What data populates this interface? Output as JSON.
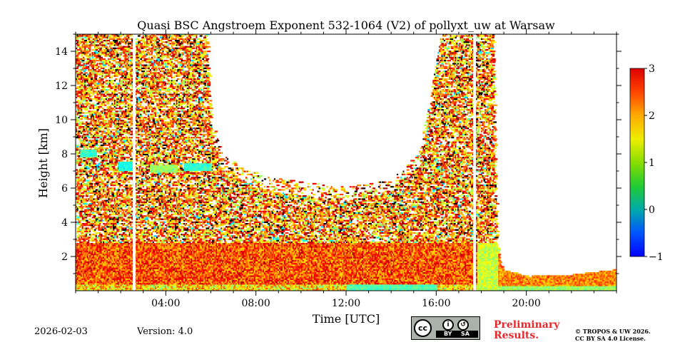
{
  "chart_data": {
    "type": "heatmap",
    "title": "Quasi BSC Angstroem Exponent 532-1064 (V2) of pollyxt_uw at Warsaw",
    "xlabel": "Time [UTC]",
    "ylabel": "Height [km]",
    "xlim": [
      0,
      24
    ],
    "ylim": [
      0,
      15
    ],
    "x_ticks": [
      4,
      8,
      12,
      16,
      20
    ],
    "x_tick_labels": [
      "04:00",
      "08:00",
      "12:00",
      "16:00",
      "20:00"
    ],
    "y_ticks": [
      2,
      4,
      6,
      8,
      10,
      12,
      14
    ],
    "y_tick_labels": [
      "2",
      "4",
      "6",
      "8",
      "10",
      "12",
      "14"
    ],
    "colorbar": {
      "min": -1,
      "max": 3,
      "ticks": [
        -1,
        0,
        1,
        2,
        3
      ],
      "tick_labels": [
        "−1",
        "0",
        "1",
        "2",
        "3"
      ],
      "colormap": "jet"
    },
    "data_gaps_hours": [
      2.6,
      17.7
    ],
    "signal_top_km": [
      [
        0,
        15
      ],
      [
        5.8,
        15
      ],
      [
        6.0,
        10
      ],
      [
        6.5,
        8
      ],
      [
        7.5,
        7
      ],
      [
        9,
        6.5
      ],
      [
        12,
        6
      ],
      [
        14,
        6.5
      ],
      [
        15.2,
        8
      ],
      [
        15.8,
        12
      ],
      [
        16.2,
        15
      ],
      [
        18.5,
        15
      ],
      [
        18.7,
        2.5
      ],
      [
        18.9,
        1.2
      ],
      [
        20,
        0.8
      ],
      [
        22,
        0.9
      ],
      [
        24,
        1.2
      ]
    ],
    "boundary_layer_top_km": 2.7,
    "dominant_value_boundary_layer": 2.2,
    "dominant_value_free_troposphere": 2.0,
    "green_patches": [
      {
        "t": [
          0.2,
          0.9
        ],
        "h": [
          7.8,
          8.2
        ],
        "value": 0.7
      },
      {
        "t": [
          1.9,
          2.5
        ],
        "h": [
          7.0,
          7.5
        ],
        "value": 0.6
      },
      {
        "t": [
          3.3,
          4.5
        ],
        "h": [
          6.9,
          7.3
        ],
        "value": 1.1
      },
      {
        "t": [
          4.8,
          6.0
        ],
        "h": [
          7.0,
          7.4
        ],
        "value": 0.7
      },
      {
        "t": [
          12,
          16
        ],
        "h": [
          0.0,
          0.3
        ],
        "value": 0.8
      }
    ]
  },
  "footer": {
    "date": "2026-02-03",
    "version": "Version: 4.0",
    "license_badge": {
      "cc": "cc",
      "by": "BY",
      "sa": "SA"
    },
    "preliminary_line1": "Preliminary",
    "preliminary_line2": "Results.",
    "copyright_line1": "© TROPOS & UW 2026.",
    "copyright_line2": "CC BY SA 4.0 License."
  }
}
